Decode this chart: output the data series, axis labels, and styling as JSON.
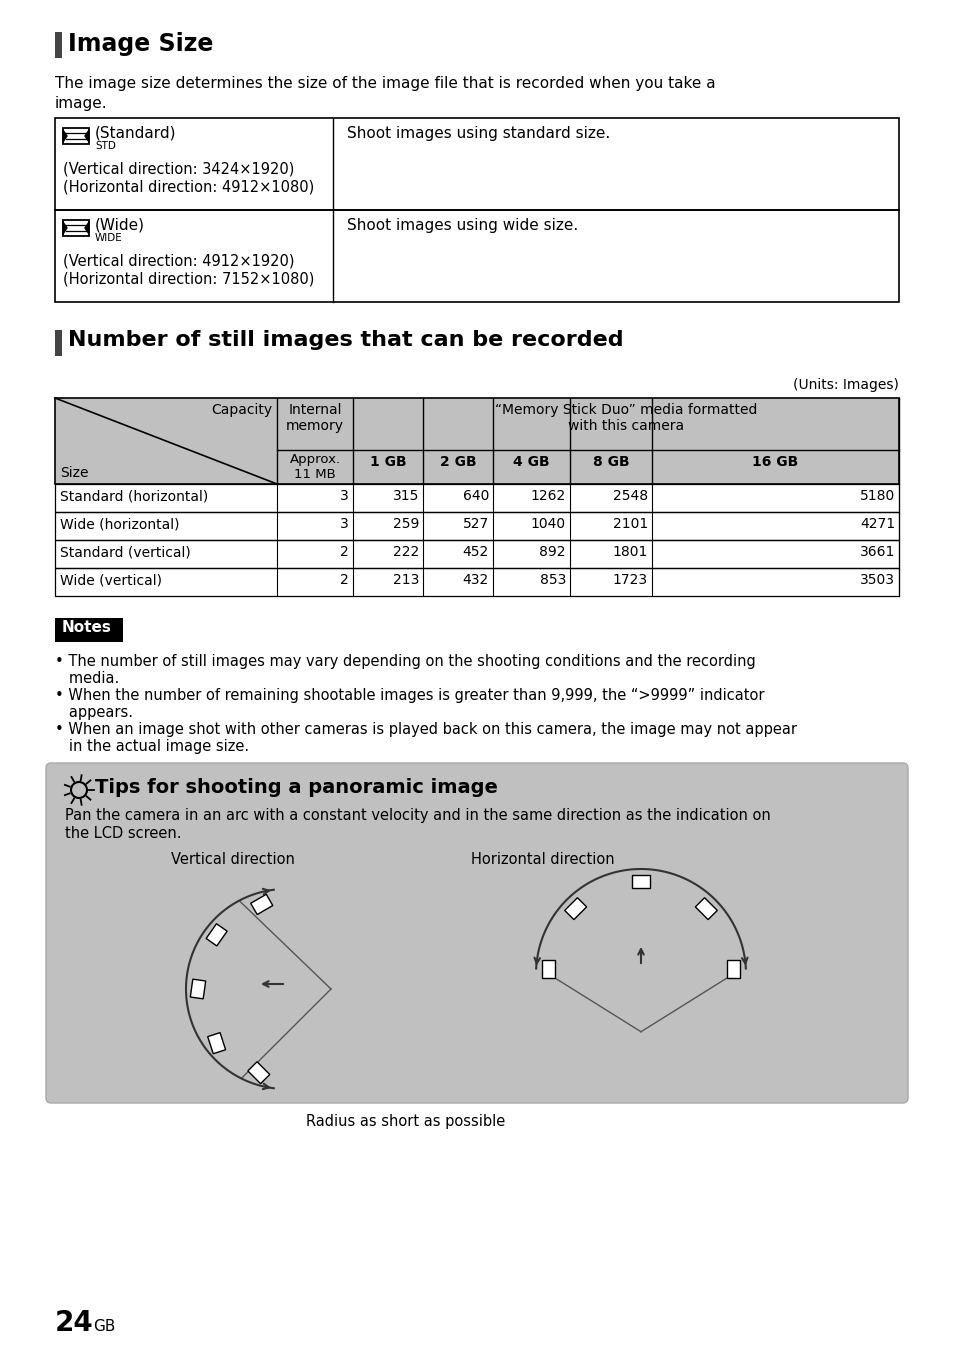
{
  "page_bg": "#ffffff",
  "section1_title": "Image Size",
  "section1_intro_line1": "The image size determines the size of the image file that is recorded when you take a",
  "section1_intro_line2": "image.",
  "table1_rows": [
    {
      "label": "(Standard)",
      "sub": "STD",
      "detail1": "(Vertical direction: 3424×1920)",
      "detail2": "(Horizontal direction: 4912×1080)",
      "desc": "Shoot images using standard size."
    },
    {
      "label": "(Wide)",
      "sub": "WIDE",
      "detail1": "(Vertical direction: 4912×1920)",
      "detail2": "(Horizontal direction: 7152×1080)",
      "desc": "Shoot images using wide size."
    }
  ],
  "section2_title": "Number of still images that can be recorded",
  "units_label": "(Units: Images)",
  "capacity_label": "Capacity",
  "internal_memory_label": "Internal\nmemory",
  "memory_stick_label": "“Memory Stick Duo” media formatted\nwith this camera",
  "approx_label": "Approx.\n11 MB",
  "gb_labels": [
    "1 GB",
    "2 GB",
    "4 GB",
    "8 GB",
    "16 GB"
  ],
  "size_label": "Size",
  "table2_data": [
    [
      "Standard (horizontal)",
      "3",
      "315",
      "640",
      "1262",
      "2548",
      "5180"
    ],
    [
      "Wide (horizontal)",
      "3",
      "259",
      "527",
      "1040",
      "2101",
      "4271"
    ],
    [
      "Standard (vertical)",
      "2",
      "222",
      "452",
      "892",
      "1801",
      "3661"
    ],
    [
      "Wide (vertical)",
      "2",
      "213",
      "432",
      "853",
      "1723",
      "3503"
    ]
  ],
  "notes_label": "Notes",
  "notes": [
    "The number of still images may vary depending on the shooting conditions and the recording\n  media.",
    "When the number of remaining shootable images is greater than 9,999, the “>9999” indicator\n  appears.",
    "When an image shot with other cameras is played back on this camera, the image may not appear\n  in the actual image size."
  ],
  "tips_title": "Tips for shooting a panoramic image",
  "tips_body1": "Pan the camera in an arc with a constant velocity and in the same direction as the indication on",
  "tips_body2": "the LCD screen.",
  "tips_vertical": "Vertical direction",
  "tips_horizontal": "Horizontal direction",
  "tips_radius": "Radius as short as possible",
  "page_number": "24",
  "page_suffix": "GB",
  "accent_bar_color": "#444444",
  "table_header_bg": "#c0c0c0",
  "tips_bg": "#c0c0c0",
  "border_color": "#000000",
  "text_color": "#000000"
}
